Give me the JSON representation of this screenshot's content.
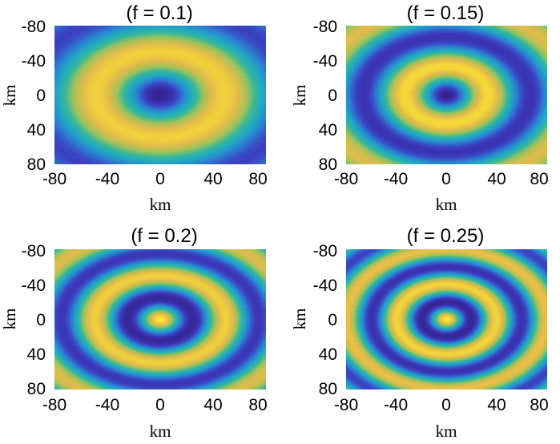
{
  "chart_data": [
    {
      "type": "heatmap",
      "title": "(f = 0.1)",
      "xlabel": "km",
      "ylabel": "km",
      "xlim": [
        -80,
        80
      ],
      "ylim": [
        -80,
        80
      ],
      "y_axis_reversed": true,
      "xticks": [
        "-80",
        "-40",
        "0",
        "40",
        "80"
      ],
      "yticks": [
        "-80",
        "-40",
        "0",
        "40",
        "80"
      ],
      "pattern": "concentric rings",
      "center": [
        0,
        0
      ],
      "ring_spacing_km": 100,
      "center_color": "#3c3bbf",
      "grid": false,
      "colorbar": false
    },
    {
      "type": "heatmap",
      "title": "(f = 0.15)",
      "xlabel": "km",
      "ylabel": "km",
      "xlim": [
        -80,
        80
      ],
      "ylim": [
        -80,
        80
      ],
      "y_axis_reversed": true,
      "xticks": [
        "-80",
        "-40",
        "0",
        "40",
        "80"
      ],
      "yticks": [
        "-80",
        "-40",
        "0",
        "40",
        "80"
      ],
      "pattern": "concentric rings",
      "center": [
        0,
        0
      ],
      "ring_spacing_km": 67,
      "center_color": "#3c3bbf",
      "grid": false,
      "colorbar": false
    },
    {
      "type": "heatmap",
      "title": "(f = 0.2)",
      "xlabel": "km",
      "ylabel": "km",
      "xlim": [
        -80,
        80
      ],
      "ylim": [
        -80,
        80
      ],
      "y_axis_reversed": true,
      "xticks": [
        "-80",
        "-40",
        "0",
        "40",
        "80"
      ],
      "yticks": [
        "-80",
        "-40",
        "0",
        "40",
        "80"
      ],
      "pattern": "concentric rings",
      "center": [
        0,
        0
      ],
      "ring_spacing_km": 50,
      "center_color": "#f5e132",
      "grid": false,
      "colorbar": false
    },
    {
      "type": "heatmap",
      "title": "(f = 0.25)",
      "xlabel": "km",
      "ylabel": "km",
      "xlim": [
        -80,
        80
      ],
      "ylim": [
        -80,
        80
      ],
      "y_axis_reversed": true,
      "xticks": [
        "-80",
        "-40",
        "0",
        "40",
        "80"
      ],
      "yticks": [
        "-80",
        "-40",
        "0",
        "40",
        "80"
      ],
      "pattern": "concentric rings",
      "center": [
        0,
        0
      ],
      "ring_spacing_km": 40,
      "center_color": "#fce92e",
      "grid": false,
      "colorbar": false
    }
  ],
  "colormap": [
    "#34208a",
    "#3c3bbf",
    "#2d7dd2",
    "#1fa8c4",
    "#35b79a",
    "#9ec25a",
    "#e5bb4a",
    "#fce92e"
  ]
}
